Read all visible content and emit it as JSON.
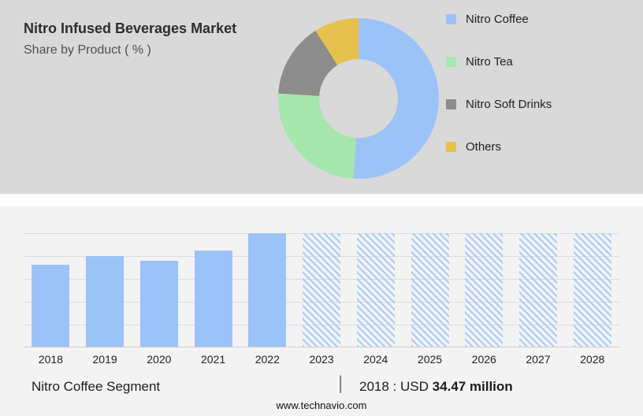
{
  "header": {
    "title": "Nitro Infused Beverages Market",
    "subtitle": "Share by Product ( % )"
  },
  "legend": {
    "items": [
      {
        "label": "Nitro Coffee",
        "color": "#9cc3f7"
      },
      {
        "label": "Nitro Tea",
        "color": "#a5e7ad"
      },
      {
        "label": "Nitro Soft Drinks",
        "color": "#8d8d8d"
      },
      {
        "label": "Others",
        "color": "#e6c14d"
      }
    ]
  },
  "chart_data": [
    {
      "type": "pie",
      "donut": true,
      "title": "Nitro Infused Beverages Market",
      "subtitle": "Share by Product ( % )",
      "labels": [
        "Nitro Coffee",
        "Nitro Tea",
        "Nitro Soft Drinks",
        "Others"
      ],
      "values": [
        51,
        25,
        15,
        9
      ],
      "colors": [
        "#9cc3f7",
        "#a5e7ad",
        "#8d8d8d",
        "#e6c14d"
      ],
      "legend_position": "right",
      "note": "shares estimated from arc angles; no percentage labels shown in image"
    },
    {
      "type": "bar",
      "categories": [
        "2018",
        "2019",
        "2020",
        "2021",
        "2022",
        "2023",
        "2024",
        "2025",
        "2026",
        "2027",
        "2028"
      ],
      "relative_heights": [
        0.72,
        0.8,
        0.76,
        0.85,
        1.0,
        1.0,
        1.0,
        1.0,
        1.0,
        1.0,
        1.0
      ],
      "forecast": [
        false,
        false,
        false,
        false,
        false,
        true,
        true,
        true,
        true,
        true,
        true
      ],
      "bar_color": "#9cc3f7",
      "hatch_color": "#a9cbf8",
      "grid": true,
      "y_axis": "unlabeled",
      "annotation": "2018 : USD 34.47 million",
      "note": "2023-2028 bars are hatched forecast placeholders; heights relative to tallest bar"
    }
  ],
  "caption": {
    "segment": "Nitro Coffee Segment",
    "divider": "|",
    "prefix": "2018 : USD",
    "value": "34.47 million"
  },
  "footer": {
    "website": "www.technavio.com"
  }
}
